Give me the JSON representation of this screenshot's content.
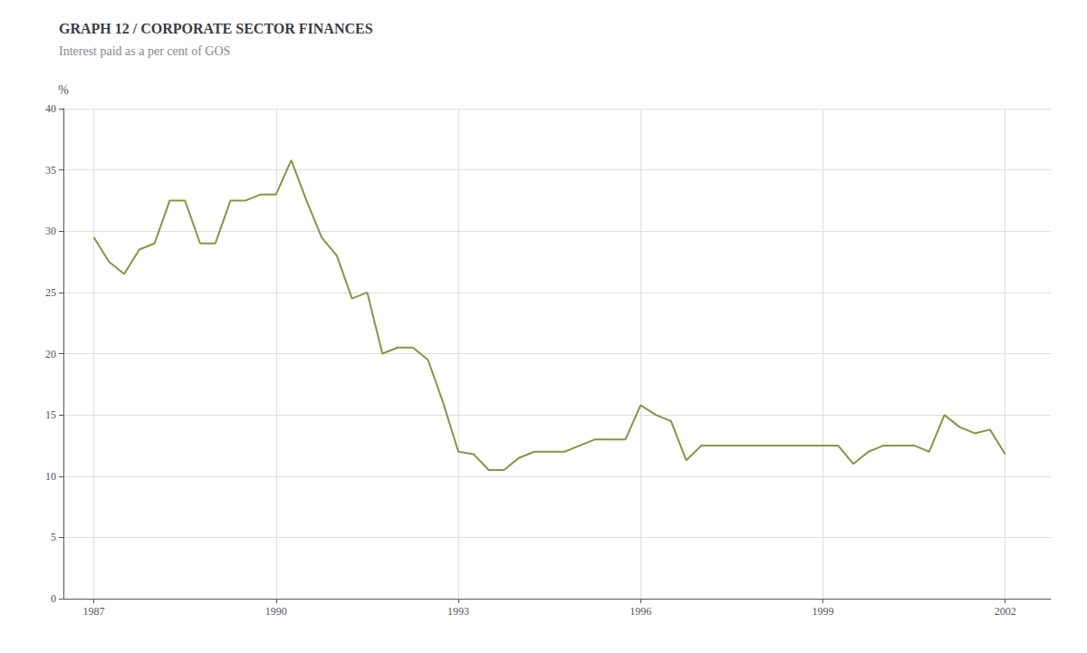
{
  "chart_data": {
    "type": "line",
    "title": "GRAPH 12 / CORPORATE SECTOR FINANCES",
    "subtitle": "Interest paid as a per cent of GOS",
    "ylabel": "%",
    "x": [
      1987.0,
      1987.25,
      1987.5,
      1987.75,
      1988.0,
      1988.25,
      1988.5,
      1988.75,
      1989.0,
      1989.25,
      1989.5,
      1989.75,
      1990.0,
      1990.25,
      1990.5,
      1990.75,
      1991.0,
      1991.25,
      1991.5,
      1991.75,
      1992.0,
      1992.25,
      1992.5,
      1992.75,
      1993.0,
      1993.25,
      1993.5,
      1993.75,
      1994.0,
      1994.25,
      1994.5,
      1994.75,
      1995.0,
      1995.25,
      1995.5,
      1995.75,
      1996.0,
      1996.25,
      1996.5,
      1996.75,
      1997.0,
      1997.25,
      1997.5,
      1997.75,
      1998.0,
      1998.25,
      1998.5,
      1998.75,
      1999.0,
      1999.25,
      1999.5,
      1999.75,
      2000.0,
      2000.25,
      2000.5,
      2000.75,
      2001.0,
      2001.25,
      2001.5,
      2001.75,
      2002.0
    ],
    "values": [
      29.5,
      27.5,
      26.5,
      28.5,
      29.0,
      32.5,
      32.5,
      29.0,
      29.0,
      32.5,
      32.5,
      33.0,
      33.0,
      35.8,
      32.5,
      29.5,
      28.0,
      24.5,
      25.0,
      20.0,
      20.5,
      20.5,
      19.5,
      16.0,
      12.0,
      11.8,
      10.5,
      10.5,
      11.5,
      12.0,
      12.0,
      12.0,
      12.5,
      13.0,
      13.0,
      13.0,
      15.8,
      15.0,
      14.5,
      11.3,
      12.5,
      12.5,
      12.5,
      12.5,
      12.5,
      12.5,
      12.5,
      12.5,
      12.5,
      12.5,
      11.0,
      12.0,
      12.5,
      12.5,
      12.5,
      12.0,
      15.0,
      14.0,
      13.5,
      13.8,
      11.8
    ],
    "color": "#8a9440",
    "xlim": [
      1986.5,
      2002.75
    ],
    "xticks": [
      1987,
      1990,
      1993,
      1996,
      1999,
      2002
    ],
    "ylim": [
      0,
      40
    ],
    "yticks": [
      0,
      5,
      10,
      15,
      20,
      25,
      30,
      35,
      40
    ],
    "grid": true
  }
}
